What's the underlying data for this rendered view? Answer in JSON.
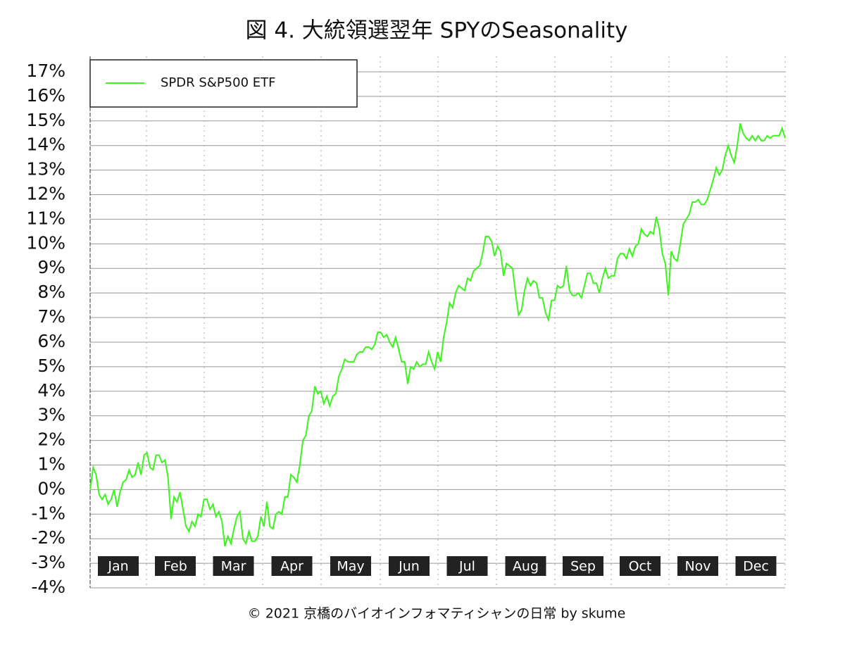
{
  "chart_data": {
    "type": "line",
    "title": "図 4. 大統領選翌年 SPYのSeasonality",
    "footer": "© 2021 京橋のバイオインフォマティシャンの日常 by skume",
    "months": [
      "Jan",
      "Feb",
      "Mar",
      "Apr",
      "May",
      "Jun",
      "Jul",
      "Aug",
      "Sep",
      "Oct",
      "Nov",
      "Dec"
    ],
    "ylim": [
      -4,
      17
    ],
    "yticks": [
      {
        "value": 17,
        "label": "17%"
      },
      {
        "value": 16,
        "label": "16%"
      },
      {
        "value": 15,
        "label": "15%"
      },
      {
        "value": 14,
        "label": "14%"
      },
      {
        "value": 13,
        "label": "13%"
      },
      {
        "value": 12,
        "label": "12%"
      },
      {
        "value": 11,
        "label": "11%"
      },
      {
        "value": 10,
        "label": "10%"
      },
      {
        "value": 9,
        "label": "9%"
      },
      {
        "value": 8,
        "label": "8%"
      },
      {
        "value": 7,
        "label": "7%"
      },
      {
        "value": 6,
        "label": "6%"
      },
      {
        "value": 5,
        "label": "5%"
      },
      {
        "value": 4,
        "label": "4%"
      },
      {
        "value": 3,
        "label": "3%"
      },
      {
        "value": 2,
        "label": "2%"
      },
      {
        "value": 1,
        "label": "1%"
      },
      {
        "value": 0,
        "label": "0%"
      },
      {
        "value": -1,
        "label": "-1%"
      },
      {
        "value": -2,
        "label": "-2%"
      },
      {
        "value": -3,
        "label": "-3%"
      },
      {
        "value": -4,
        "label": "-4%"
      }
    ],
    "grid": true,
    "legend": "upper left",
    "series": [
      {
        "name": "SPDR S&P500 ETF",
        "color": "#3cf51c",
        "values": [
          0,
          0.9,
          0.6,
          -0.2,
          -0.4,
          -0.2,
          -0.6,
          -0.4,
          0,
          -0.7,
          -0.1,
          0.3,
          0.4,
          0.8,
          0.5,
          0.6,
          1.1,
          0.6,
          1.4,
          1.5,
          0.9,
          0.8,
          1.4,
          1.4,
          1.1,
          1.2,
          0.5,
          -1.2,
          -0.3,
          -0.5,
          -0.1,
          -0.8,
          -1.5,
          -1.7,
          -1.3,
          -1.5,
          -1.0,
          -1.1,
          -0.4,
          -0.4,
          -0.8,
          -0.6,
          -1.1,
          -0.9,
          -1.3,
          -2.3,
          -1.9,
          -2.2,
          -1.6,
          -1.1,
          -0.9,
          -2.0,
          -2.2,
          -1.7,
          -2.1,
          -2.1,
          -1.9,
          -1.1,
          -1.5,
          -0.5,
          -1.5,
          -1.6,
          -1.0,
          -0.9,
          -1.0,
          -0.3,
          -0.3,
          0.6,
          0.5,
          0.3,
          1.0,
          2.0,
          2.2,
          3.0,
          3.2,
          4.2,
          3.9,
          4.0,
          3.5,
          3.8,
          3.4,
          3.8,
          3.9,
          4.6,
          4.9,
          5.3,
          5.2,
          5.2,
          5.2,
          5.5,
          5.6,
          5.6,
          5.8,
          5.8,
          5.7,
          5.9,
          6.4,
          6.4,
          6.2,
          6.3,
          6.0,
          5.8,
          6.2,
          5.7,
          5.2,
          5.2,
          4.3,
          5.0,
          4.9,
          5.2,
          5.0,
          5.1,
          5.1,
          5.6,
          5.2,
          4.9,
          5.6,
          5.2,
          6.2,
          6.8,
          7.6,
          7.4,
          8.0,
          8.3,
          8.2,
          8.1,
          8.6,
          8.5,
          8.9,
          9.0,
          9.1,
          9.6,
          10.3,
          10.3,
          10.1,
          9.5,
          9.9,
          9.7,
          8.7,
          9.2,
          9.1,
          9.0,
          8.0,
          7.1,
          7.3,
          8.1,
          8.6,
          8.3,
          8.5,
          8.4,
          7.8,
          7.8,
          7.2,
          6.9,
          7.7,
          7.7,
          8.3,
          8.2,
          8.3,
          9.1,
          8.1,
          7.9,
          7.9,
          8.0,
          7.8,
          8.3,
          8.8,
          8.8,
          8.4,
          8.4,
          8.0,
          8.6,
          9.0,
          8.6,
          8.7,
          8.7,
          9.4,
          9.6,
          9.6,
          9.4,
          9.8,
          9.5,
          9.9,
          10.0,
          10.6,
          10.4,
          10.3,
          10.5,
          10.4,
          11.1,
          10.6,
          9.6,
          9.2,
          7.9,
          9.7,
          9.4,
          9.3,
          10.0,
          10.8,
          11.0,
          11.2,
          11.7,
          11.7,
          11.8,
          11.6,
          11.6,
          11.8,
          12.2,
          12.6,
          13.1,
          12.8,
          13.0,
          13.6,
          14.0,
          13.6,
          13.3,
          14.0,
          14.9,
          14.5,
          14.3,
          14.2,
          14.4,
          14.2,
          14.4,
          14.2,
          14.2,
          14.4,
          14.3,
          14.4,
          14.4,
          14.4,
          14.7,
          14.3
        ]
      }
    ]
  }
}
